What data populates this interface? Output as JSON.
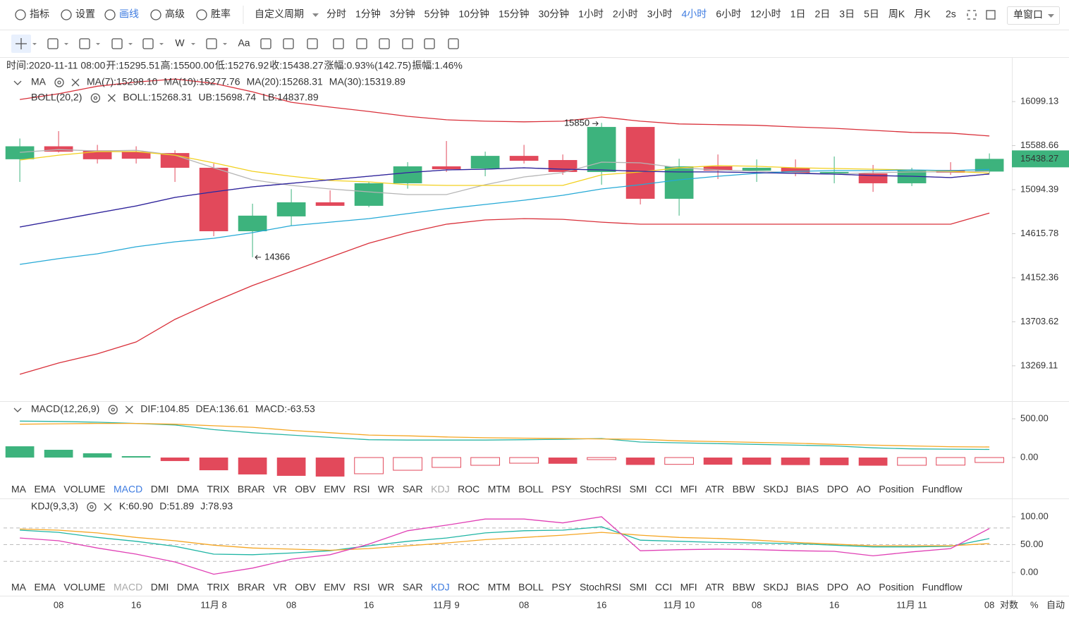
{
  "toolbar": {
    "items": [
      "指标",
      "设置",
      "画线",
      "高级",
      "胜率"
    ],
    "active": 2,
    "custom_period": "自定义周期",
    "periods": [
      "分时",
      "1分钟",
      "3分钟",
      "5分钟",
      "10分钟",
      "15分钟",
      "30分钟",
      "1小时",
      "2小时",
      "3小时",
      "4小时",
      "6小时",
      "12小时",
      "1日",
      "2日",
      "3日",
      "5日",
      "周K",
      "月K"
    ],
    "active_period": 10,
    "refresh": "2s",
    "window_mode": "单窗口"
  },
  "drawing_tools": {
    "count": 17,
    "active": 0,
    "texts": [
      {
        "index": 5,
        "label": "W"
      },
      {
        "index": 7,
        "label": "Aa"
      }
    ]
  },
  "info_bar": [
    {
      "label": "时间:",
      "value": "2020-11-11 08:00",
      "value_color": "#333333"
    },
    {
      "label": "开:",
      "value": "15295.51",
      "value_color": "#3db37d"
    },
    {
      "label": "高:",
      "value": "15500.00",
      "value_color": "#3db37d"
    },
    {
      "label": "低:",
      "value": "15276.92",
      "value_color": "#3db37d"
    },
    {
      "label": "收:",
      "value": "15438.27",
      "value_color": "#3db37d"
    },
    {
      "label": "涨幅:",
      "value": "0.93%(142.75)",
      "value_color": "#3db37d"
    },
    {
      "label": "振幅:",
      "value": "1.46%",
      "value_color": "#3db37d"
    }
  ],
  "chart_data": [
    {
      "type": "candlestick",
      "categories": [
        null,
        "08",
        null,
        "16",
        null,
        "11月 8",
        null,
        "08",
        null,
        "16",
        null,
        "11月 9",
        null,
        "08",
        null,
        "16",
        null,
        "11月 10",
        null,
        "08",
        null,
        "16",
        null,
        "11月 11",
        null,
        "08"
      ],
      "open": [
        15434,
        15581,
        15535,
        15520,
        15504,
        15338,
        14642,
        14802,
        14955,
        14917,
        15165,
        15354,
        15330,
        15472,
        15425,
        15291,
        15803,
        14994,
        15354,
        15306,
        15338,
        15275,
        15275,
        15165,
        15314,
        15295.51
      ],
      "high": [
        15670,
        15755,
        15597,
        15581,
        15535,
        15386,
        14940,
        15100,
        15086,
        15180,
        15401,
        15641,
        15520,
        15597,
        15488,
        15850,
        15803,
        15440,
        15488,
        15432,
        15432,
        15465,
        15370,
        15338,
        15401,
        15500
      ],
      "low": [
        15180,
        15510,
        15386,
        15386,
        15180,
        14589,
        14366,
        14702,
        14917,
        14902,
        15105,
        15291,
        15243,
        15386,
        15259,
        15149,
        14932,
        14810,
        15212,
        15180,
        15243,
        15165,
        15070,
        15134,
        15259,
        15276.92
      ],
      "close": [
        15581,
        15520,
        15434,
        15440,
        15338,
        14642,
        14810,
        14955,
        14917,
        15165,
        15354,
        15322,
        15472,
        15417,
        15291,
        15803,
        14994,
        15354,
        15306,
        15338,
        15275,
        15291,
        15165,
        15306,
        15283,
        15438.27
      ],
      "up_color": "#3db37d",
      "down_color": "#e2495b",
      "overlays": [
        {
          "title": "MA",
          "series": [
            {
              "name": "MA(7):15298.10",
              "color": "#b5b5b5",
              "values": [
                15512,
                15543,
                15527,
                15535,
                15480,
                15338,
                15204,
                15141,
                15102,
                15070,
                15040,
                15040,
                15149,
                15235,
                15283,
                15401,
                15393,
                15338,
                15314,
                15298,
                15283,
                15267,
                15283,
                15291,
                15291,
                15298.1
              ]
            },
            {
              "name": "MA(10):15277.76",
              "color": "#f2d01e",
              "values": [
                15425,
                15480,
                15520,
                15520,
                15480,
                15393,
                15298,
                15243,
                15196,
                15180,
                15149,
                15141,
                15141,
                15141,
                15141,
                15259,
                15291,
                15338,
                15362,
                15354,
                15338,
                15330,
                15322,
                15314,
                15298,
                15277.76
              ]
            },
            {
              "name": "MA(20):15268.31",
              "color": "#e645b6",
              "values": [
                14687,
                14763,
                14840,
                14916,
                15009,
                15070,
                15126,
                15165,
                15204,
                15243,
                15283,
                15314,
                15322,
                15338,
                15322,
                15314,
                15298,
                15291,
                15291,
                15283,
                15275,
                15267,
                15251,
                15243,
                15228,
                15268.31
              ]
            },
            {
              "name": "MA(30):15319.89",
              "color": "#25a9d6",
              "values": [
                14291,
                14351,
                14402,
                14477,
                14529,
                14567,
                14627,
                14702,
                14740,
                14778,
                14832,
                14886,
                14932,
                14978,
                15032,
                15102,
                15149,
                15204,
                15243,
                15275,
                15298,
                15306,
                15306,
                15314,
                15306,
                15319.89
              ]
            }
          ]
        },
        {
          "title": "BOLL(20,2)",
          "series": [
            {
              "name": "BOLL:15268.31",
              "color": "#232a9c",
              "values": [
                14687,
                14763,
                14840,
                14916,
                15009,
                15070,
                15126,
                15165,
                15204,
                15243,
                15283,
                15314,
                15322,
                15338,
                15322,
                15314,
                15298,
                15291,
                15291,
                15283,
                15275,
                15267,
                15251,
                15243,
                15228,
                15268.31
              ]
            },
            {
              "name": "UB:15698.74",
              "color": "#d9303a",
              "values": [
                16124,
                16191,
                16281,
                16331,
                16367,
                16315,
                16215,
                16091,
                16034,
                15983,
                15926,
                15886,
                15870,
                15862,
                15870,
                15918,
                15870,
                15838,
                15830,
                15822,
                15803,
                15787,
                15764,
                15740,
                15732,
                15698.74
              ]
            },
            {
              "name": "LB:14837.89",
              "color": "#d9303a",
              "values": [
                13187,
                13296,
                13386,
                13503,
                13728,
                13906,
                14072,
                14218,
                14366,
                14514,
                14627,
                14718,
                14763,
                14778,
                14770,
                14740,
                14718,
                14718,
                14718,
                14718,
                14718,
                14718,
                14718,
                14718,
                14718,
                14837.89
              ]
            }
          ]
        }
      ],
      "log_scale": true,
      "ylim": [
        12937,
        16623
      ],
      "yticks": [
        16099.13,
        15588.66,
        15094.39,
        14615.78,
        14152.36,
        13703.62,
        13269.11
      ],
      "high_label": "15850",
      "low_label": "14366",
      "last_price_label": "15438.27"
    },
    {
      "type": "macd",
      "title": "MACD(12,26,9)",
      "series": [
        {
          "name": "DIF:104.85",
          "color": "#2bb5a5",
          "values": [
            470,
            465,
            455,
            440,
            420,
            360,
            320,
            290,
            260,
            230,
            225,
            225,
            225,
            230,
            235,
            245,
            200,
            190,
            180,
            170,
            160,
            150,
            125,
            112,
            108,
            104.85
          ]
        },
        {
          "name": "DEA:136.61",
          "color": "#f5a623",
          "values": [
            430,
            435,
            440,
            440,
            430,
            410,
            390,
            350,
            320,
            290,
            280,
            265,
            255,
            250,
            245,
            240,
            235,
            215,
            205,
            195,
            185,
            170,
            160,
            150,
            140,
            136.61
          ]
        }
      ],
      "histogram": {
        "name": "MACD:-63.53",
        "color": "#e2495b",
        "positive_color": "#3db37d",
        "values": [
          145,
          100,
          55,
          18,
          -45,
          -164,
          -218,
          -236,
          -245,
          -209,
          -164,
          -127,
          -100,
          -73,
          -80,
          -27,
          -95,
          -88,
          -92,
          -93,
          -97,
          -99,
          -105,
          -100,
          -98,
          -63.53
        ]
      },
      "ylim": [
        -282,
        700
      ],
      "yticks": [
        {
          "value": 500,
          "label": "500.00"
        },
        {
          "value": 0,
          "label": "0.00"
        }
      ]
    },
    {
      "type": "kdj",
      "title": "KDJ(9,3,3)",
      "series": [
        {
          "name": "K:60.90",
          "color": "#1fb5a4",
          "values": [
            76,
            72,
            63,
            56,
            47,
            33,
            32,
            35,
            39,
            48,
            56,
            62,
            71,
            75,
            76,
            82,
            58,
            56,
            54,
            53,
            52,
            49,
            46,
            46,
            47,
            60.9
          ]
        },
        {
          "name": "D:51.89",
          "color": "#f5a623",
          "values": [
            78,
            76,
            71,
            63,
            57,
            49,
            44,
            42,
            40,
            43,
            48,
            53,
            59,
            63,
            67,
            72,
            67,
            63,
            61,
            58,
            54,
            51,
            48,
            48,
            48,
            51.89
          ]
        },
        {
          "name": "J:78.93",
          "color": "#e040b5",
          "values": [
            62,
            57,
            44,
            33,
            19,
            -3,
            8,
            24,
            32,
            51,
            75,
            85,
            96,
            96,
            89,
            100,
            39,
            41,
            42,
            41,
            39,
            38,
            30,
            37,
            43,
            78.93
          ]
        }
      ],
      "ylim": [
        -10,
        131.6
      ],
      "yticks": [
        {
          "value": 100,
          "label": "100.00"
        },
        {
          "value": 50,
          "label": "50.00"
        },
        {
          "value": 0,
          "label": "0.00"
        }
      ],
      "reference_lines": [
        20,
        50,
        80
      ]
    }
  ],
  "indicator_tabs": [
    {
      "items": [
        "MA",
        "EMA",
        "VOLUME",
        "MACD",
        "DMI",
        "DMA",
        "TRIX",
        "BRAR",
        "VR",
        "OBV",
        "EMV",
        "RSI",
        "WR",
        "SAR",
        "KDJ",
        "ROC",
        "MTM",
        "BOLL",
        "PSY",
        "StochRSI",
        "SMI",
        "CCI",
        "MFI",
        "ATR",
        "BBW",
        "SKDJ",
        "BIAS",
        "DPO",
        "AO",
        "Position",
        "Fundflow"
      ],
      "active": 3,
      "dimmed": 14
    },
    {
      "items": [
        "MA",
        "EMA",
        "VOLUME",
        "MACD",
        "DMI",
        "DMA",
        "TRIX",
        "BRAR",
        "VR",
        "OBV",
        "EMV",
        "RSI",
        "WR",
        "SAR",
        "KDJ",
        "ROC",
        "MTM",
        "BOLL",
        "PSY",
        "StochRSI",
        "SMI",
        "CCI",
        "MFI",
        "ATR",
        "BBW",
        "SKDJ",
        "BIAS",
        "DPO",
        "AO",
        "Position",
        "Fundflow"
      ],
      "active": 14,
      "dimmed": 3
    }
  ],
  "axis_controls": [
    "对数",
    "%",
    "自动"
  ]
}
